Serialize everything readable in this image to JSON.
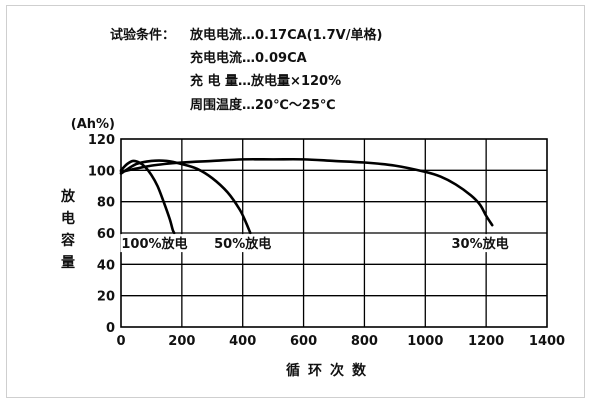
{
  "conditions": {
    "header": "试验条件：",
    "lines": [
      "放电电流…0.17CA(1.7V/单格)",
      "充电电流…0.09CA",
      "充 电 量…放电量×120%",
      "周围温度…20℃～25℃"
    ]
  },
  "chart_data": {
    "type": "line",
    "title": "",
    "xlabel": "循环次数",
    "ylabel": "放电容量",
    "yunit": "(Ah%)",
    "xlim": [
      0,
      1400
    ],
    "ylim": [
      0,
      120
    ],
    "xticks": [
      "0",
      "200",
      "400",
      "600",
      "800",
      "1000",
      "1200",
      "1400"
    ],
    "yticks": [
      "0",
      "20",
      "40",
      "60",
      "80",
      "100",
      "120"
    ],
    "grid": true,
    "legend": "none",
    "series": [
      {
        "name": "100%放电",
        "x": [
          0,
          20,
          40,
          60,
          80,
          100,
          120,
          140,
          160,
          170,
          175
        ],
        "y": [
          100,
          104,
          106,
          105,
          102,
          97,
          90,
          80,
          69,
          62,
          60
        ]
      },
      {
        "name": "50%放电",
        "x": [
          0,
          50,
          100,
          150,
          200,
          250,
          300,
          350,
          390,
          410,
          425
        ],
        "y": [
          98,
          104,
          106,
          106,
          104,
          101,
          95,
          86,
          75,
          67,
          60
        ]
      },
      {
        "name": "30%放电",
        "x": [
          0,
          100,
          200,
          300,
          400,
          500,
          600,
          700,
          800,
          900,
          1000,
          1050,
          1100,
          1150,
          1180,
          1200,
          1220
        ],
        "y": [
          99,
          103,
          105,
          106,
          107,
          107,
          107,
          106,
          105,
          103,
          99,
          96,
          91,
          84,
          78,
          71,
          65
        ]
      }
    ],
    "annotations": [
      {
        "text": "100%放电",
        "x": 110,
        "y": 51
      },
      {
        "text": "50%放电",
        "x": 400,
        "y": 51
      },
      {
        "text": "30%放电",
        "x": 1180,
        "y": 51
      }
    ]
  }
}
